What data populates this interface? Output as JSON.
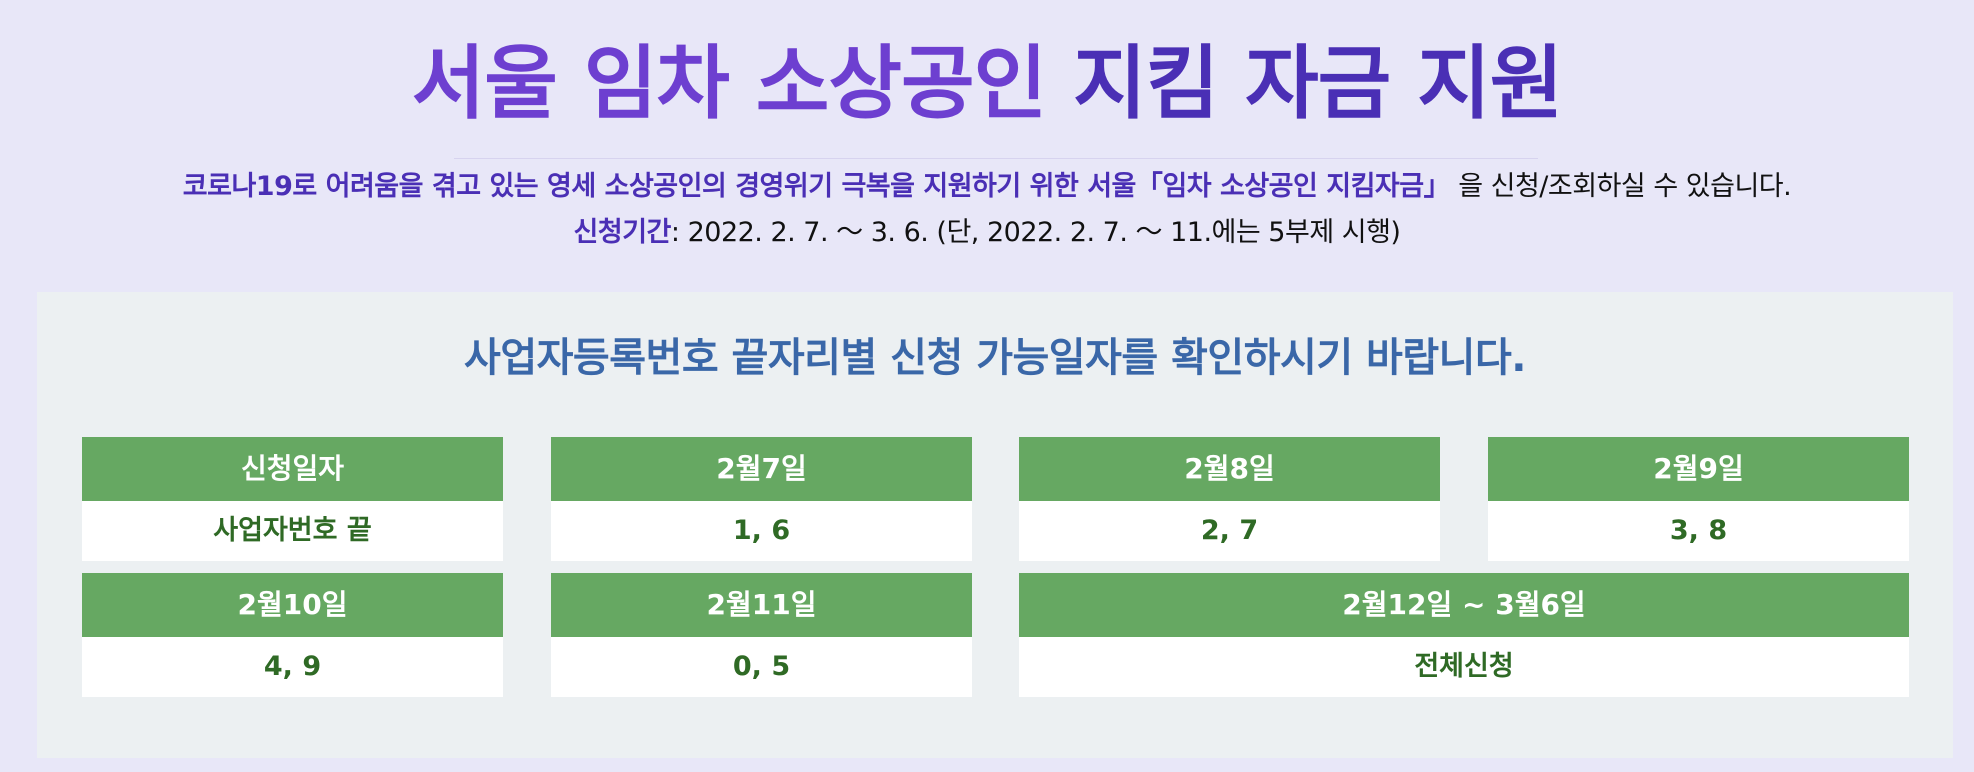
{
  "header": {
    "title_part_1": "서울 임차 소상공인",
    "title_part_2": "지킴 자금 지원"
  },
  "intro": {
    "highlight": "코로나19로 어려움을 겪고 있는 영세 소상공인의 경영위기 극복을 지원하기 위한 서울「임차 소상공인 지킴자금」",
    "rest": "을 신청/조회하실 수 있습니다."
  },
  "period": {
    "label": "신청기간",
    "value": ": 2022. 2. 7. ～ 3. 6. (단, 2022. 2. 7. ～ 11.에는 5부제 시행)"
  },
  "schedule": {
    "heading": "사업자등록번호 끝자리별 신청 가능일자를 확인하시기 바랍니다.",
    "cells": [
      {
        "head": "신청일자",
        "value": "사업자번호 끝"
      },
      {
        "head": "2월7일",
        "value": "1, 6"
      },
      {
        "head": "2월8일",
        "value": "2, 7"
      },
      {
        "head": "2월9일",
        "value": "3, 8"
      },
      {
        "head": "2월10일",
        "value": "4, 9"
      },
      {
        "head": "2월11일",
        "value": "0, 5"
      },
      {
        "head": "2월12일 ~ 3월6일",
        "value": "전체신청"
      }
    ]
  },
  "colors": {
    "background": "#e8e7f8",
    "title_accent": "#6d3fd0",
    "title_accent_dark": "#4a2fb5",
    "panel": "#ecf0f2",
    "heading_blue": "#3a67a8",
    "header_green": "#66a862",
    "value_green": "#2f6a25"
  }
}
